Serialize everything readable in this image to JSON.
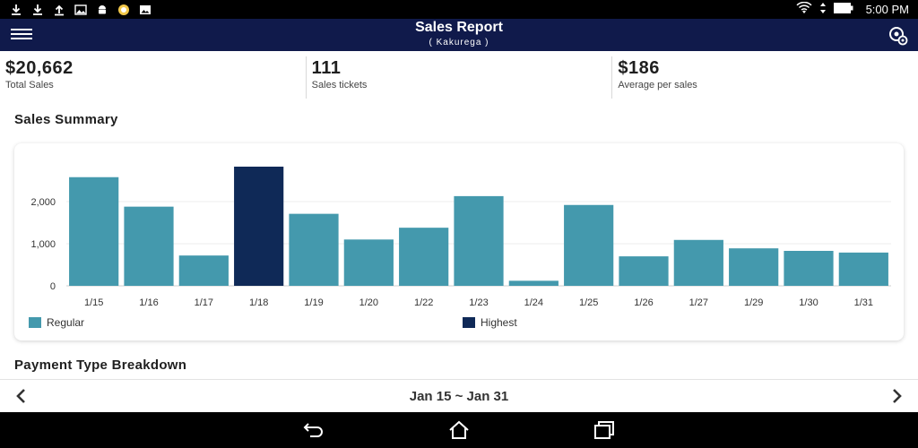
{
  "status_bar": {
    "time": "5:00 PM",
    "left_icons": [
      "download-icon",
      "download-icon",
      "upload-icon",
      "image-icon",
      "android-icon",
      "circle-app-icon",
      "gallery-icon"
    ],
    "right_icons": [
      "wifi-icon",
      "data-arrows-icon",
      "battery-icon"
    ]
  },
  "app_bar": {
    "title": "Sales Report",
    "subtitle": "( Kakurega )",
    "left_icon": "menu-icon",
    "right_icon": "location-settings-icon"
  },
  "stats": [
    {
      "value": "$20,662",
      "label": "Total Sales"
    },
    {
      "value": "111",
      "label": "Sales tickets"
    },
    {
      "value": "$186",
      "label": "Average per sales"
    }
  ],
  "sales_summary_title": "Sales Summary",
  "payment_breakdown_title": "Payment Type Breakdown",
  "colors": {
    "regular": "#4499ad",
    "highest": "#0f2957",
    "app_bar": "#101a4b"
  },
  "chart_data": {
    "type": "bar",
    "categories": [
      "1/15",
      "1/16",
      "1/17",
      "1/18",
      "1/19",
      "1/20",
      "1/22",
      "1/23",
      "1/24",
      "1/25",
      "1/26",
      "1/27",
      "1/29",
      "1/30",
      "1/31"
    ],
    "values": [
      2580,
      1880,
      720,
      2830,
      1710,
      1100,
      1380,
      2130,
      120,
      1920,
      700,
      1090,
      890,
      830,
      790
    ],
    "highest_index": 3,
    "y_ticks": [
      "0",
      "1,000",
      "2,000"
    ],
    "ylim": [
      0,
      3000
    ],
    "grid": true,
    "legend": [
      {
        "name": "Regular",
        "color": "#4499ad"
      },
      {
        "name": "Highest",
        "color": "#0f2957"
      }
    ],
    "legend_position": "bottom"
  },
  "date_nav": {
    "range": "Jan 15 ~ Jan 31",
    "prev_icon": "chevron-left-icon",
    "next_icon": "chevron-right-icon"
  },
  "nav_bar": [
    "back-icon",
    "home-icon",
    "recent-apps-icon"
  ]
}
